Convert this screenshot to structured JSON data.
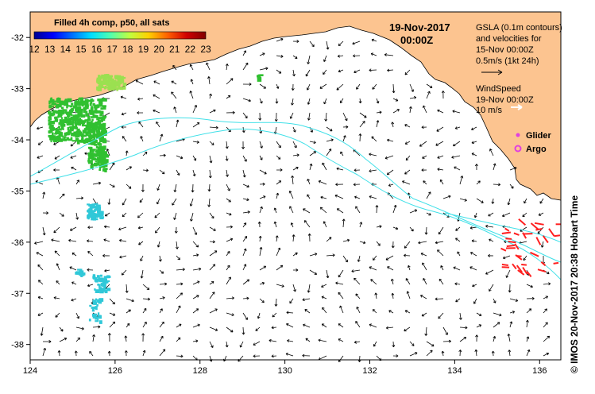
{
  "map": {
    "colorbar": {
      "title": "Filled 4h comp, p50, all sats",
      "ticks": [
        "12",
        "13",
        "14",
        "15",
        "16",
        "17",
        "18",
        "19",
        "20",
        "21",
        "22",
        "23"
      ],
      "colors": [
        "#00008f",
        "#0000ff",
        "#0070ff",
        "#00dfff",
        "#50ffaf",
        "#bfff40",
        "#ffd000",
        "#ff6000",
        "#d00000",
        "#800000"
      ]
    },
    "datetime": {
      "date": "19-Nov-2017",
      "time": "00:00Z"
    },
    "legend": {
      "gsla_lines": [
        "GSLA (0.1m contours)",
        "and velocities for",
        "15-Nov 00:00Z",
        "0.5m/s (1kt 24h)"
      ],
      "wind_lines": [
        "WindSpeed",
        "19-Nov 00:00Z",
        "10 m/s"
      ],
      "glider_label": "Glider",
      "argo_label": "Argo",
      "glider_color": "#e040e0",
      "argo_color": "#e040e0"
    },
    "axes": {
      "x_ticks": [
        124,
        126,
        128,
        130,
        132,
        134,
        136
      ],
      "y_ticks": [
        -32,
        -33,
        -34,
        -35,
        -36,
        -37,
        -38
      ],
      "xlim": [
        124,
        136.5
      ],
      "ylim": [
        -38.3,
        -31.5
      ]
    },
    "colors": {
      "land": "#fcc490",
      "contour": "#40e0e8",
      "sst_patch": "#30c030",
      "sst_patch_light": "#9be050",
      "sst_cyan": "#30c8d8",
      "wind": "#ff2020"
    },
    "credit": "© IMOS 20-Nov-2017 20:38 Hobart Time"
  }
}
